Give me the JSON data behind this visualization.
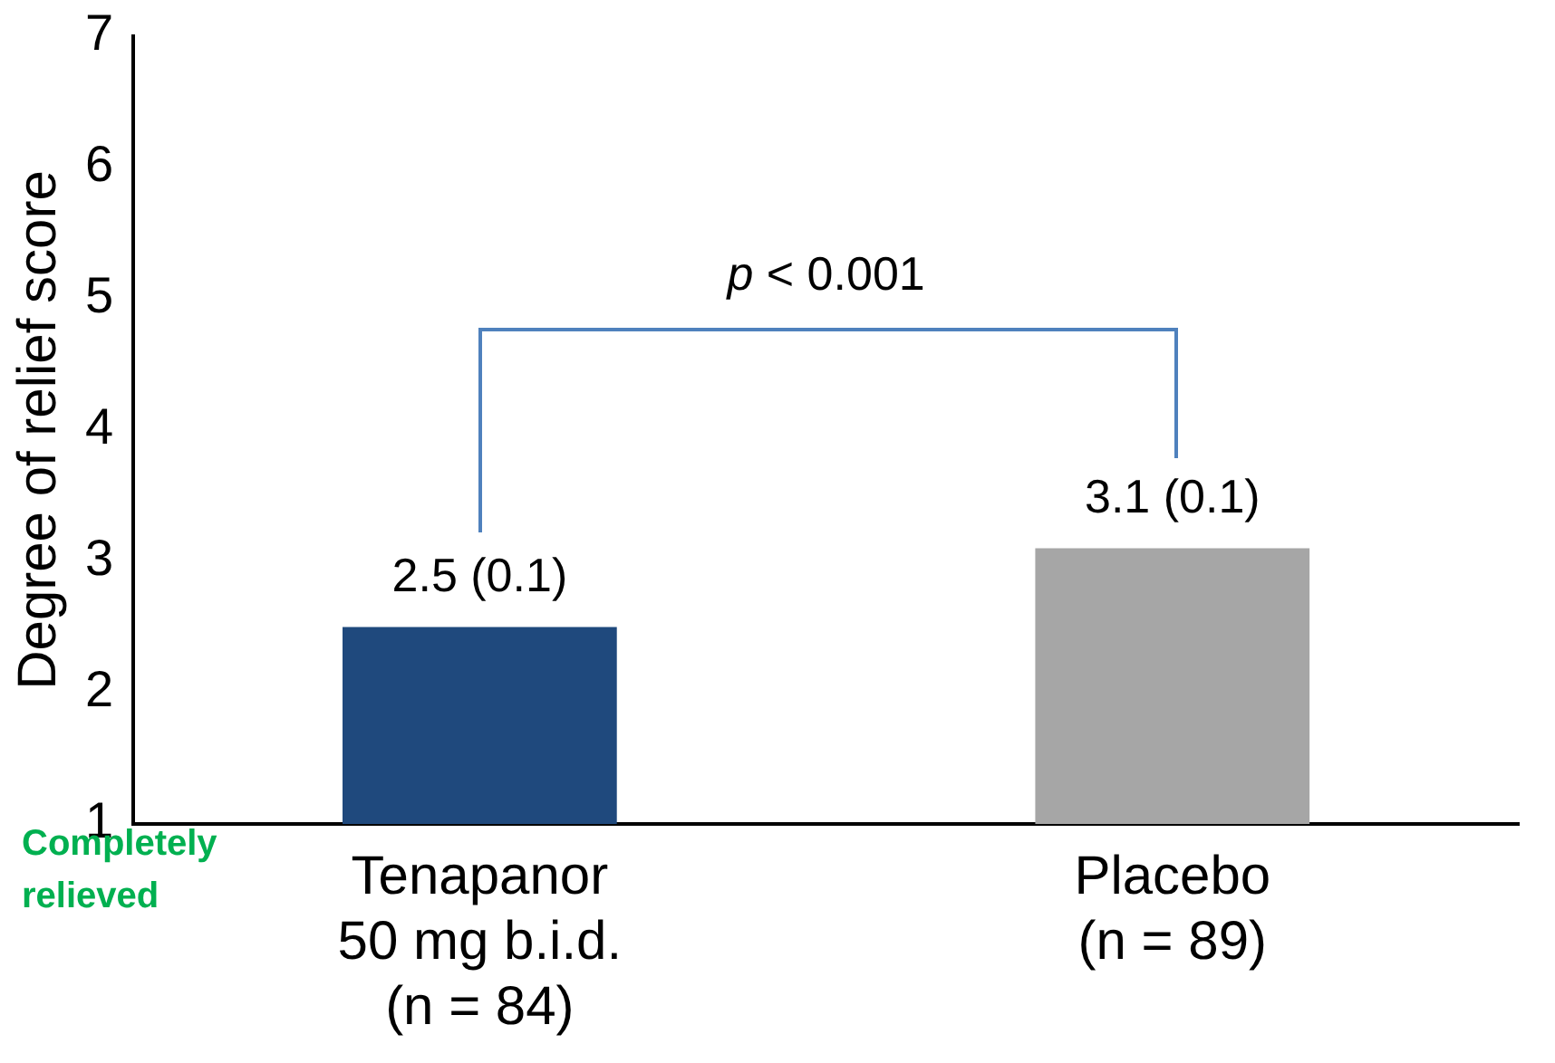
{
  "chart_data": {
    "type": "bar",
    "ylabel": "Degree of relief score",
    "categories": [
      "Tenapanor\n50 mg b.i.d.\n(n = 84)",
      "Placebo\n(n = 89)"
    ],
    "values": [
      2.5,
      3.1
    ],
    "colors": [
      "#1f497d",
      "#a6a6a6"
    ],
    "value_labels": [
      "2.5 (0.1)",
      "3.1 (0.1)"
    ],
    "ylim": [
      1,
      7
    ],
    "yticks": [
      1,
      2,
      3,
      4,
      5,
      6,
      7
    ],
    "grid": false,
    "legend": false,
    "annotations": [
      "p < 0.001",
      "Completely relieved"
    ]
  }
}
